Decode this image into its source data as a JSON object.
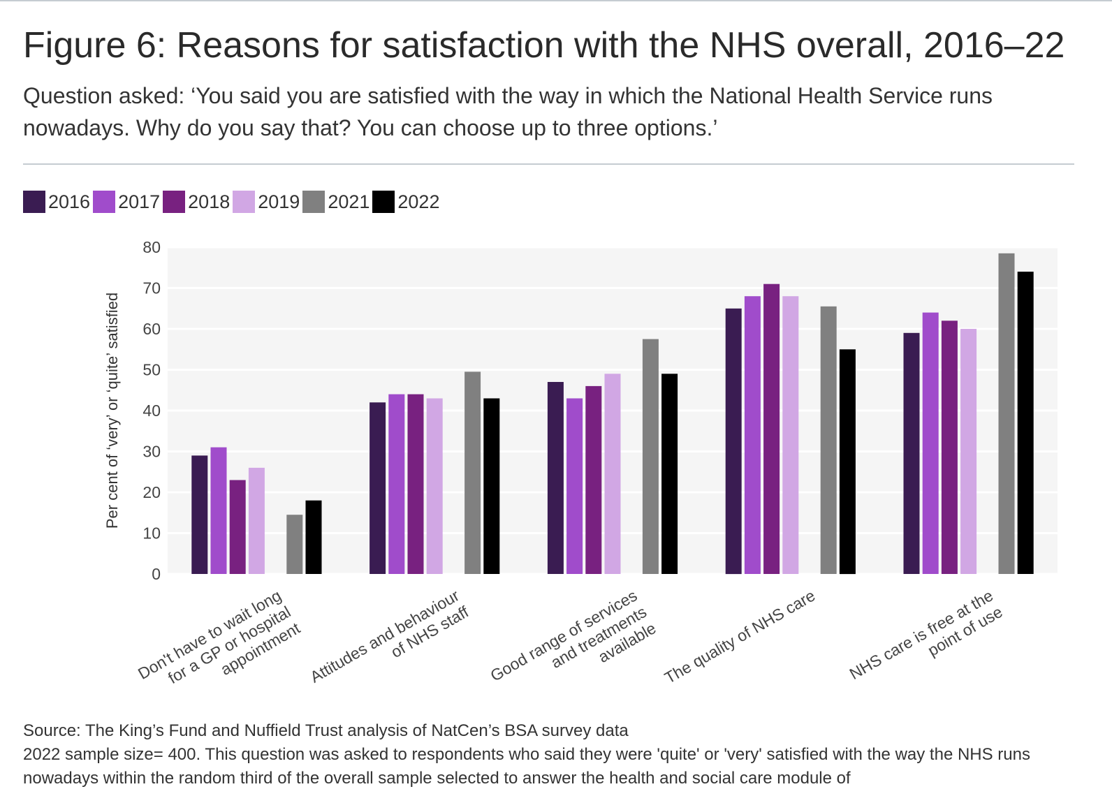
{
  "header": {
    "title": "Figure 6: Reasons for satisfaction with the NHS overall, 2016–22",
    "subtitle": "Question asked: ‘You said you are satisfied with the way in which the National Health Service runs nowadays. Why do you say that? You can choose up to three options.’"
  },
  "legend": {
    "items": [
      {
        "label": "2016",
        "color": "#3a1c52"
      },
      {
        "label": "2017",
        "color": "#a04ccb"
      },
      {
        "label": "2018",
        "color": "#782180"
      },
      {
        "label": "2019",
        "color": "#d1a7e4"
      },
      {
        "label": "2021",
        "color": "#808080"
      },
      {
        "label": "2022",
        "color": "#000000"
      }
    ]
  },
  "chart_data": {
    "type": "bar",
    "title": "Figure 6: Reasons for satisfaction with the NHS overall, 2016–22",
    "xlabel": "",
    "ylabel": "Per cent of ‘very’ or ‘quite’ satisfied",
    "ylim": [
      0,
      80
    ],
    "yticks": [
      "0",
      "10",
      "20",
      "30",
      "40",
      "50",
      "60",
      "70",
      "80"
    ],
    "grid": true,
    "legend_position": "top-left",
    "categories": [
      [
        "Don't have to wait long",
        "for a GP or hospital",
        "appointment"
      ],
      [
        "Attitudes and behaviour",
        "of NHS staff"
      ],
      [
        "Good range of services",
        "and treatments",
        "available"
      ],
      [
        "The quality of NHS care"
      ],
      [
        "NHS care is free at the",
        "point of use"
      ]
    ],
    "series": [
      {
        "name": "2016",
        "color": "#3a1c52",
        "values": [
          29,
          42,
          47,
          65,
          59
        ]
      },
      {
        "name": "2017",
        "color": "#a04ccb",
        "values": [
          31,
          44,
          43,
          68,
          64
        ]
      },
      {
        "name": "2018",
        "color": "#782180",
        "values": [
          23,
          44,
          46,
          71,
          62
        ]
      },
      {
        "name": "2019",
        "color": "#d1a7e4",
        "values": [
          26,
          43,
          49,
          68,
          60
        ]
      },
      {
        "name": "2021",
        "color": "#808080",
        "values": [
          14.5,
          49.5,
          57.5,
          65.5,
          78.5
        ]
      },
      {
        "name": "2022",
        "color": "#000000",
        "values": [
          18,
          43,
          49,
          55,
          74
        ]
      }
    ]
  },
  "footer": {
    "source": "Source: The King’s Fund and Nuffield Trust analysis of NatCen’s BSA survey data",
    "note": "2022 sample size= 400. This question was asked to respondents who said they were 'quite' or 'very' satisfied with the way the NHS runs nowadays within the random third of the overall sample selected to answer the health and social care module of"
  }
}
